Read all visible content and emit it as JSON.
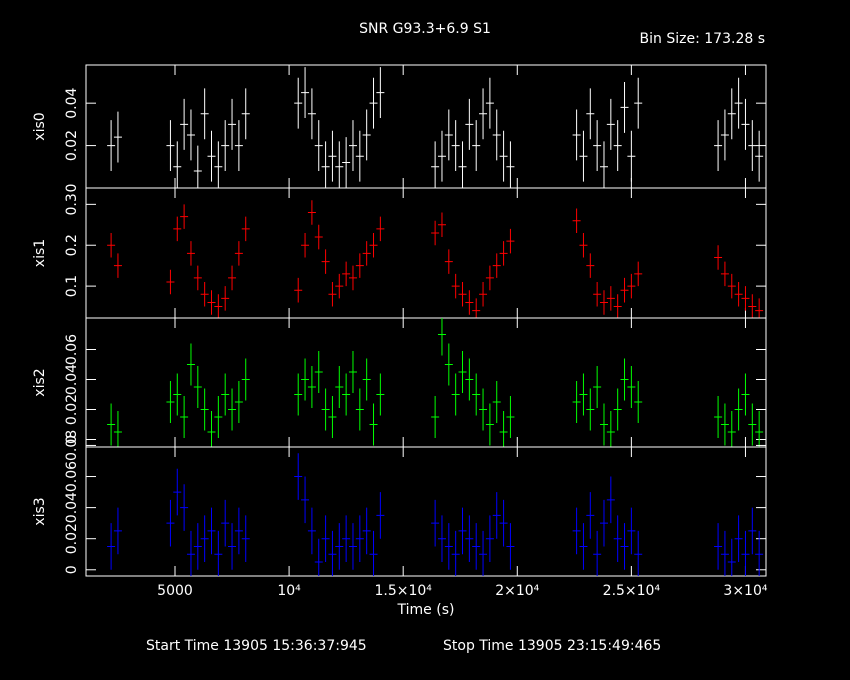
{
  "chart_data": {
    "type": "errorbar",
    "title": "SNR G93.3+6.9 S1",
    "bin_label": "Bin Size: 173.28 s",
    "xlabel": "Time (s)",
    "start_label": "Start Time 13905 15:36:37:945",
    "stop_label": "Stop Time 13905 23:15:49:465",
    "xlim": [
      1100,
      30900
    ],
    "xticks": [
      5000,
      {
        "value": 10000,
        "label": "10⁴"
      },
      {
        "value": 15000,
        "label": "1.5×10⁴"
      },
      {
        "value": 20000,
        "label": "2×10⁴"
      },
      {
        "value": 25000,
        "label": "2.5×10⁴"
      },
      {
        "value": 30000,
        "label": "3×10⁴"
      }
    ],
    "x": [
      2200,
      2500,
      4800,
      5100,
      5400,
      5700,
      6000,
      6300,
      6600,
      6900,
      7200,
      7500,
      7800,
      8100,
      10400,
      10700,
      11000,
      11300,
      11600,
      11900,
      12200,
      12500,
      12800,
      13100,
      13400,
      13700,
      14000,
      16400,
      16700,
      17000,
      17300,
      17600,
      17900,
      18200,
      18500,
      18800,
      19100,
      19400,
      19700,
      22600,
      22900,
      23200,
      23500,
      23800,
      24100,
      24400,
      24700,
      25000,
      25300,
      28800,
      29100,
      29400,
      29700,
      30000,
      30300,
      30600
    ],
    "series": [
      {
        "name": "xis0",
        "color": "#ffffff",
        "error": 0.012,
        "ylim": [
          0,
          0.058
        ],
        "yticks": [
          0,
          0.02,
          0.04
        ],
        "values": [
          0.02,
          0.024,
          0.02,
          0.01,
          0.03,
          0.025,
          0.008,
          0.035,
          0.015,
          0.01,
          0.02,
          0.03,
          0.02,
          0.035,
          0.04,
          0.045,
          0.035,
          0.02,
          0.01,
          0.015,
          0.01,
          0.012,
          0.02,
          0.015,
          0.025,
          0.04,
          0.045,
          0.01,
          0.015,
          0.025,
          0.02,
          0.01,
          0.03,
          0.02,
          0.035,
          0.04,
          0.025,
          0.015,
          0.01,
          0.025,
          0.015,
          0.035,
          0.02,
          0.01,
          0.03,
          0.02,
          0.038,
          0.015,
          0.04,
          0.02,
          0.025,
          0.035,
          0.04,
          0.03,
          0.02,
          0.015
        ]
      },
      {
        "name": "xis1",
        "color": "#ff0000",
        "error": 0.03,
        "ylim": [
          0.022,
          0.34
        ],
        "yticks": [
          0.1,
          0.2,
          0.3
        ],
        "values": [
          0.2,
          0.15,
          0.11,
          0.24,
          0.27,
          0.18,
          0.12,
          0.08,
          0.06,
          0.05,
          0.07,
          0.12,
          0.18,
          0.24,
          0.09,
          0.2,
          0.28,
          0.22,
          0.16,
          0.08,
          0.1,
          0.13,
          0.12,
          0.15,
          0.18,
          0.2,
          0.24,
          0.23,
          0.25,
          0.16,
          0.1,
          0.08,
          0.06,
          0.04,
          0.08,
          0.12,
          0.15,
          0.18,
          0.21,
          0.26,
          0.2,
          0.15,
          0.08,
          0.06,
          0.07,
          0.05,
          0.09,
          0.1,
          0.13,
          0.17,
          0.13,
          0.1,
          0.08,
          0.07,
          0.05,
          0.04
        ]
      },
      {
        "name": "xis2",
        "color": "#00ff00",
        "error": 0.014,
        "ylim": [
          -0.005,
          0.081
        ],
        "yticks": [
          0,
          0.02,
          0.04,
          0.06
        ],
        "values": [
          0.01,
          0.005,
          0.025,
          0.03,
          0.015,
          0.05,
          0.035,
          0.02,
          0.005,
          0.015,
          0.03,
          0.02,
          0.025,
          0.04,
          0.03,
          0.04,
          0.035,
          0.045,
          0.02,
          0.015,
          0.035,
          0.03,
          0.045,
          0.02,
          0.04,
          0.01,
          0.03,
          0.015,
          0.07,
          0.05,
          0.03,
          0.045,
          0.04,
          0.03,
          0.02,
          0.01,
          0.025,
          0.005,
          0.015,
          0.025,
          0.03,
          0.02,
          0.035,
          0.01,
          0.005,
          0.02,
          0.04,
          0.035,
          0.025,
          0.015,
          0.01,
          0.005,
          0.02,
          0.03,
          0.01,
          0.005
        ]
      },
      {
        "name": "xis3",
        "color": "#0000ff",
        "error": 0.015,
        "ylim": [
          -0.004,
          0.079
        ],
        "yticks": [
          0,
          0.02,
          0.04,
          0.06,
          0.08
        ],
        "values": [
          0.015,
          0.025,
          0.03,
          0.05,
          0.04,
          0.01,
          0.015,
          0.02,
          0.025,
          0.01,
          0.03,
          0.015,
          0.025,
          0.02,
          0.06,
          0.045,
          0.025,
          0.005,
          0.02,
          0.01,
          0.015,
          0.02,
          0.015,
          0.02,
          0.025,
          0.01,
          0.035,
          0.03,
          0.02,
          0.015,
          0.01,
          0.025,
          0.02,
          0.015,
          0.01,
          0.02,
          0.035,
          0.03,
          0.015,
          0.025,
          0.015,
          0.035,
          0.01,
          0.03,
          0.045,
          0.02,
          0.015,
          0.025,
          0.01,
          0.015,
          0.01,
          0.005,
          0.02,
          0.01,
          0.025,
          0.01
        ]
      }
    ]
  }
}
